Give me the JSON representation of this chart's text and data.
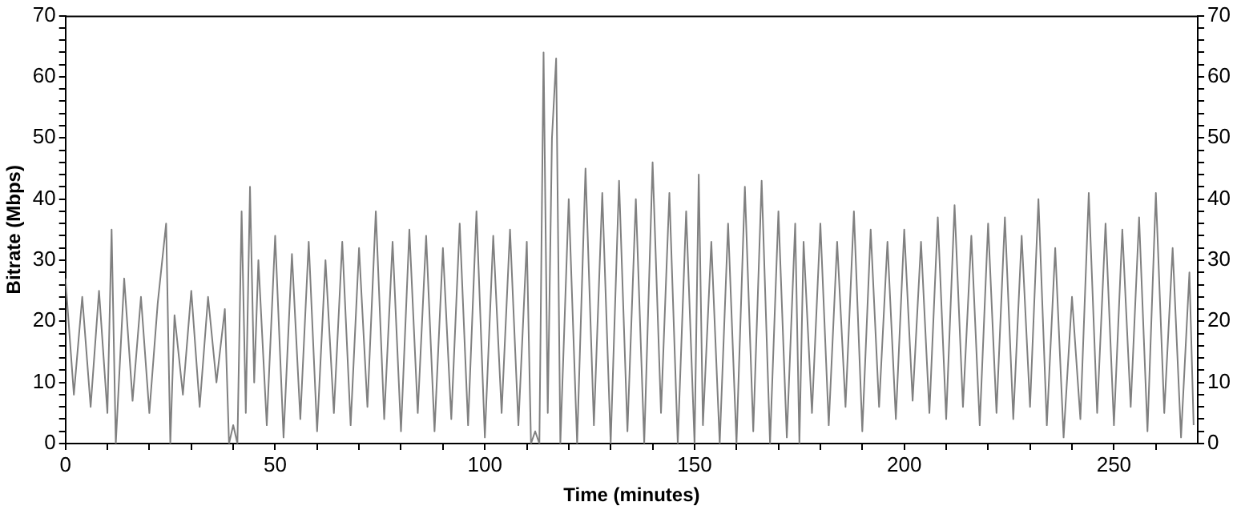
{
  "chart_data": {
    "type": "line",
    "xlabel": "Time (minutes)",
    "ylabel": "Bitrate (Mbps)",
    "grid": false,
    "legend": false,
    "marker": "none",
    "line_style": "solid",
    "xlim": [
      0,
      270
    ],
    "xticks": [
      0,
      {
        "value": 10,
        "label": null
      },
      {
        "value": 20,
        "label": null
      },
      {
        "value": 30,
        "label": null
      },
      {
        "value": 40,
        "label": null
      },
      50,
      {
        "value": 60,
        "label": null
      },
      {
        "value": 70,
        "label": null
      },
      {
        "value": 80,
        "label": null
      },
      {
        "value": 90,
        "label": null
      },
      100,
      {
        "value": 110,
        "label": null
      },
      {
        "value": 120,
        "label": null
      },
      {
        "value": 130,
        "label": null
      },
      {
        "value": 140,
        "label": null
      },
      150,
      {
        "value": 160,
        "label": null
      },
      {
        "value": 170,
        "label": null
      },
      {
        "value": 180,
        "label": null
      },
      {
        "value": 190,
        "label": null
      },
      200,
      {
        "value": 210,
        "label": null
      },
      {
        "value": 220,
        "label": null
      },
      {
        "value": 230,
        "label": null
      },
      {
        "value": 240,
        "label": null
      },
      250,
      {
        "value": 260,
        "label": null
      }
    ],
    "ylim": [
      0,
      70
    ],
    "yticks": [
      0,
      {
        "value": 2,
        "label": null
      },
      {
        "value": 4,
        "label": null
      },
      {
        "value": 6,
        "label": null
      },
      {
        "value": 8,
        "label": null
      },
      10,
      {
        "value": 12,
        "label": null
      },
      {
        "value": 14,
        "label": null
      },
      {
        "value": 16,
        "label": null
      },
      {
        "value": 18,
        "label": null
      },
      20,
      {
        "value": 22,
        "label": null
      },
      {
        "value": 24,
        "label": null
      },
      {
        "value": 26,
        "label": null
      },
      {
        "value": 28,
        "label": null
      },
      30,
      {
        "value": 32,
        "label": null
      },
      {
        "value": 34,
        "label": null
      },
      {
        "value": 36,
        "label": null
      },
      {
        "value": 38,
        "label": null
      },
      40,
      {
        "value": 42,
        "label": null
      },
      {
        "value": 44,
        "label": null
      },
      {
        "value": 46,
        "label": null
      },
      {
        "value": 48,
        "label": null
      },
      50,
      {
        "value": 52,
        "label": null
      },
      {
        "value": 54,
        "label": null
      },
      {
        "value": 56,
        "label": null
      },
      {
        "value": 58,
        "label": null
      },
      60,
      {
        "value": 62,
        "label": null
      },
      {
        "value": 64,
        "label": null
      },
      {
        "value": 66,
        "label": null
      },
      {
        "value": 68,
        "label": null
      },
      70
    ],
    "y2lim": [
      0,
      70
    ],
    "y2ticks": [
      0,
      {
        "value": 2,
        "label": null
      },
      {
        "value": 4,
        "label": null
      },
      {
        "value": 6,
        "label": null
      },
      {
        "value": 8,
        "label": null
      },
      10,
      {
        "value": 12,
        "label": null
      },
      {
        "value": 14,
        "label": null
      },
      {
        "value": 16,
        "label": null
      },
      {
        "value": 18,
        "label": null
      },
      20,
      {
        "value": 22,
        "label": null
      },
      {
        "value": 24,
        "label": null
      },
      {
        "value": 26,
        "label": null
      },
      {
        "value": 28,
        "label": null
      },
      30,
      {
        "value": 32,
        "label": null
      },
      {
        "value": 34,
        "label": null
      },
      {
        "value": 36,
        "label": null
      },
      {
        "value": 38,
        "label": null
      },
      40,
      {
        "value": 42,
        "label": null
      },
      {
        "value": 44,
        "label": null
      },
      {
        "value": 46,
        "label": null
      },
      {
        "value": 48,
        "label": null
      },
      50,
      {
        "value": 52,
        "label": null
      },
      {
        "value": 54,
        "label": null
      },
      {
        "value": 56,
        "label": null
      },
      {
        "value": 58,
        "label": null
      },
      60,
      {
        "value": 62,
        "label": null
      },
      {
        "value": 64,
        "label": null
      },
      {
        "value": 66,
        "label": null
      },
      {
        "value": 68,
        "label": null
      },
      70
    ],
    "series": [
      {
        "color": "#808080",
        "x": [
          0,
          2,
          4,
          6,
          8,
          10,
          11,
          12,
          14,
          16,
          18,
          20,
          22,
          24,
          25,
          26,
          28,
          30,
          32,
          34,
          36,
          38,
          39,
          40,
          41,
          42,
          43,
          44,
          45,
          46,
          48,
          50,
          52,
          54,
          56,
          58,
          60,
          62,
          64,
          66,
          68,
          70,
          72,
          74,
          76,
          78,
          80,
          82,
          84,
          86,
          88,
          90,
          92,
          94,
          96,
          98,
          100,
          102,
          104,
          106,
          108,
          110,
          111,
          112,
          113,
          114,
          115,
          116,
          117,
          118,
          120,
          122,
          124,
          126,
          128,
          130,
          132,
          134,
          136,
          138,
          140,
          142,
          144,
          146,
          148,
          150,
          151,
          152,
          154,
          156,
          158,
          160,
          162,
          164,
          166,
          168,
          170,
          172,
          174,
          175,
          176,
          178,
          180,
          182,
          184,
          186,
          188,
          190,
          192,
          194,
          196,
          198,
          200,
          202,
          204,
          206,
          208,
          210,
          212,
          214,
          216,
          218,
          220,
          222,
          224,
          226,
          228,
          230,
          232,
          234,
          236,
          238,
          240,
          242,
          244,
          246,
          248,
          250,
          252,
          254,
          256,
          258,
          260,
          262,
          264,
          266,
          268,
          269
        ],
        "values": [
          27,
          8,
          24,
          6,
          25,
          5,
          35,
          0,
          27,
          7,
          24,
          5,
          23,
          36,
          0,
          21,
          8,
          25,
          6,
          24,
          10,
          22,
          0,
          3,
          0,
          38,
          5,
          42,
          10,
          30,
          3,
          34,
          1,
          31,
          4,
          33,
          2,
          30,
          5,
          33,
          3,
          32,
          6,
          38,
          4,
          33,
          2,
          35,
          5,
          34,
          2,
          32,
          4,
          36,
          3,
          38,
          1,
          34,
          5,
          35,
          3,
          33,
          0,
          2,
          0,
          64,
          5,
          50,
          63,
          0,
          40,
          0,
          45,
          3,
          41,
          0,
          43,
          2,
          40,
          0,
          46,
          5,
          41,
          0,
          38,
          0,
          44,
          3,
          33,
          0,
          36,
          0,
          42,
          2,
          43,
          0,
          38,
          1,
          36,
          0,
          33,
          5,
          36,
          3,
          33,
          6,
          38,
          2,
          35,
          6,
          33,
          4,
          35,
          7,
          33,
          5,
          37,
          4,
          39,
          6,
          34,
          3,
          36,
          5,
          37,
          4,
          34,
          6,
          40,
          3,
          32,
          1,
          24,
          4,
          41,
          5,
          36,
          3,
          35,
          6,
          37,
          2,
          41,
          5,
          32,
          1,
          28,
          3
        ]
      }
    ]
  }
}
